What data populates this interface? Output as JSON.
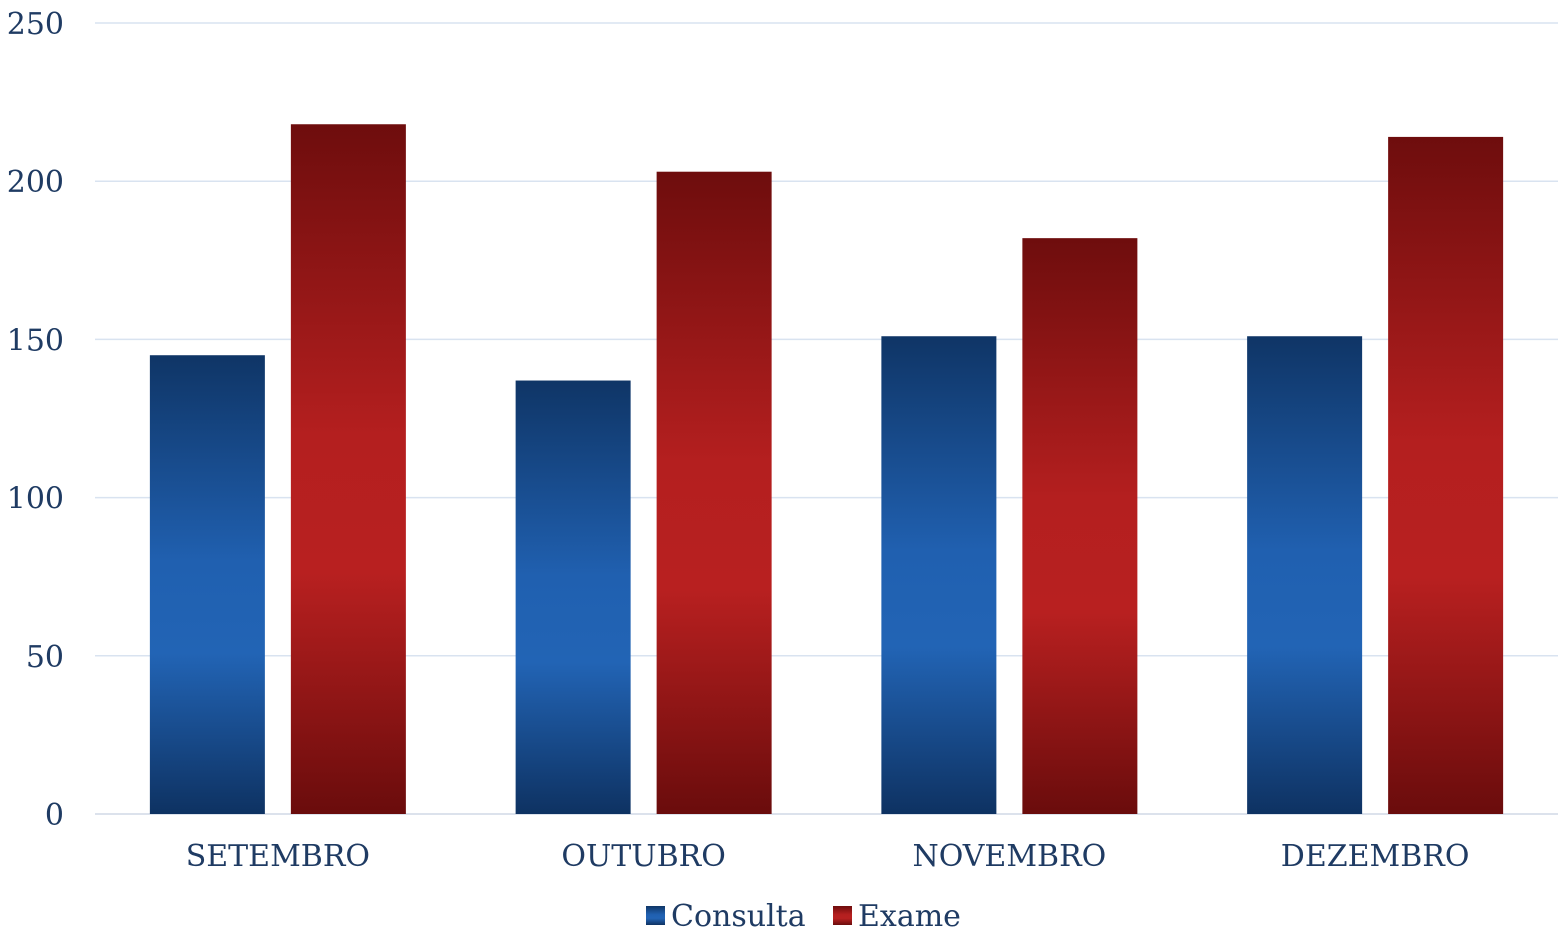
{
  "chart_data": {
    "type": "bar",
    "categories": [
      "SETEMBRO",
      "OUTUBRO",
      "NOVEMBRO",
      "DEZEMBRO"
    ],
    "series": [
      {
        "name": "Consulta",
        "values": [
          145,
          137,
          151,
          151
        ],
        "color": "#1f5fae"
      },
      {
        "name": "Exame",
        "values": [
          218,
          203,
          182,
          214
        ],
        "color": "#b11f1f"
      }
    ],
    "yticks": [
      "0",
      "50",
      "100",
      "150",
      "200",
      "250"
    ],
    "ylim": [
      0,
      250
    ],
    "grid": true,
    "legend_position": "bottom"
  }
}
